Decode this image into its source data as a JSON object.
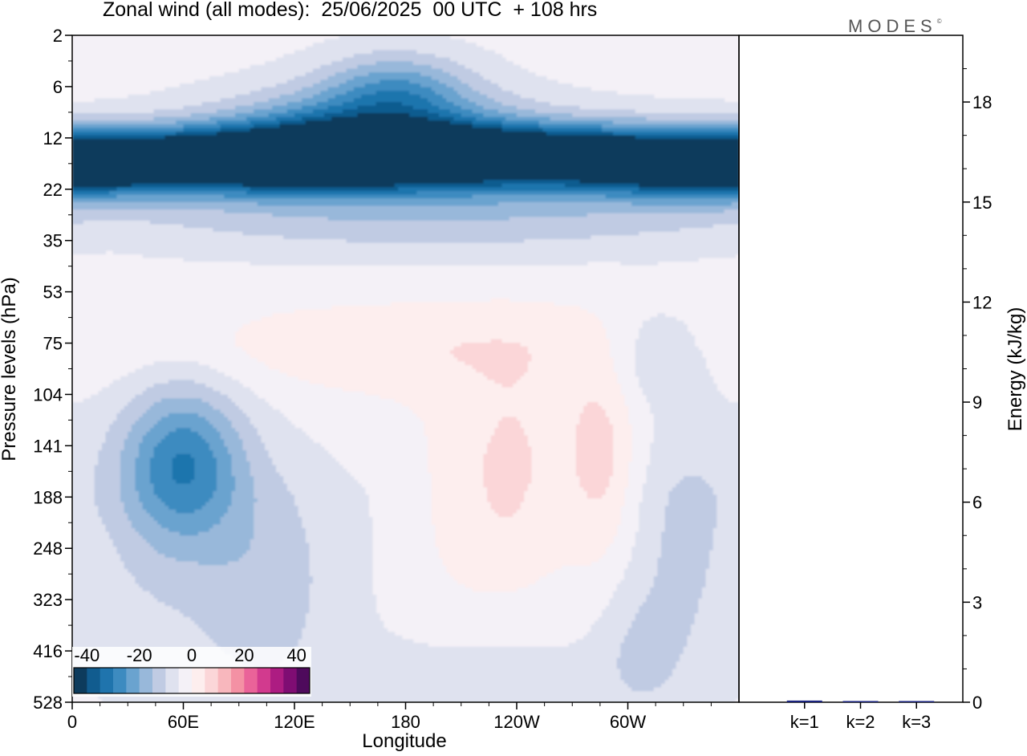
{
  "title": "Zonal wind (all modes):  25/06/2025  00 UTC  + 108 hrs",
  "brand": "MODES",
  "brand_mark": "©",
  "colors": {
    "level_fills": [
      "#0d3b5c",
      "#115c8f",
      "#1f74ad",
      "#3d8bc0",
      "#6aa3cf",
      "#98b8da",
      "#c0cbe3",
      "#dfe2ef",
      "#f4f1f7",
      "#fdeeee",
      "#fbd6d8",
      "#f8b7bd",
      "#f491a4",
      "#ea6399",
      "#d23a8e",
      "#ad1c82",
      "#7f0d73",
      "#4e0a5c"
    ],
    "bar": "#1a237e"
  },
  "chart_data": [
    {
      "type": "heatmap",
      "title": "Zonal wind (all modes):  25/06/2025  00 UTC  + 108 hrs",
      "xlabel": "Longitude",
      "ylabel": "Pressure levels (hPa)",
      "x_ticks": [
        "0",
        "60E",
        "120E",
        "180",
        "120W",
        "60W"
      ],
      "x_tick_degrees": [
        0,
        60,
        120,
        180,
        240,
        300
      ],
      "xlim": [
        0,
        360
      ],
      "y_ticks": [
        "2",
        "6",
        "12",
        "22",
        "35",
        "53",
        "75",
        "104",
        "141",
        "188",
        "248",
        "323",
        "416",
        "528"
      ],
      "colorbar": {
        "ticks": [
          "-40",
          "-20",
          "0",
          "20",
          "40"
        ],
        "tick_values": [
          -40,
          -20,
          0,
          20,
          40
        ],
        "min": -45,
        "max": 45,
        "step": 5
      },
      "features": [
        {
          "lon": 160,
          "level": 1.8,
          "value": -22,
          "w": 75,
          "h": 0.8
        },
        {
          "lon": 175,
          "level": 1.0,
          "value": -16,
          "w": 40,
          "h": 0.7
        },
        {
          "lon": 40,
          "level": 2.4,
          "value": -28,
          "w": 85,
          "h": 0.55
        },
        {
          "lon": 120,
          "level": 2.5,
          "value": -27,
          "w": 80,
          "h": 0.6
        },
        {
          "lon": 190,
          "level": 2.2,
          "value": -32,
          "w": 110,
          "h": 0.65
        },
        {
          "lon": 280,
          "level": 2.4,
          "value": -28,
          "w": 95,
          "h": 0.6
        },
        {
          "lon": 350,
          "level": 2.6,
          "value": -24,
          "w": 60,
          "h": 0.6
        },
        {
          "lon": 200,
          "level": 3.4,
          "value": -12,
          "w": 200,
          "h": 1.0
        },
        {
          "lon": 200,
          "level": 1.7,
          "value": 6,
          "w": 80,
          "h": 0.4
        },
        {
          "lon": 60,
          "level": 8.3,
          "value": -22,
          "w": 32,
          "h": 1.5
        },
        {
          "lon": 45,
          "level": 9.5,
          "value": -7,
          "w": 95,
          "h": 3.2
        },
        {
          "lon": 105,
          "level": 11.0,
          "value": -6,
          "w": 35,
          "h": 2.2
        },
        {
          "lon": 240,
          "level": 8.6,
          "value": 7,
          "w": 25,
          "h": 2.0
        },
        {
          "lon": 210,
          "level": 9.3,
          "value": 5,
          "w": 30,
          "h": 2.2
        },
        {
          "lon": 285,
          "level": 8.2,
          "value": 9,
          "w": 18,
          "h": 1.8
        },
        {
          "lon": 280,
          "level": 10.0,
          "value": 3,
          "w": 35,
          "h": 2.5
        },
        {
          "lon": 315,
          "level": 6.2,
          "value": -8,
          "w": 30,
          "h": 1.0
        },
        {
          "lon": 330,
          "level": 9.8,
          "value": -5,
          "w": 25,
          "h": 2.5
        },
        {
          "lon": 180,
          "level": 6.2,
          "value": 4,
          "w": 120,
          "h": 0.8
        },
        {
          "lon": 230,
          "level": 12.5,
          "value": -4,
          "w": 70,
          "h": 1.0
        },
        {
          "lon": 305,
          "level": 12.0,
          "value": -6,
          "w": 25,
          "h": 1.5
        },
        {
          "lon": 5,
          "level": 10.5,
          "value": 3,
          "w": 25,
          "h": 2.0
        }
      ]
    },
    {
      "type": "bar",
      "categories": [
        "k=1",
        "k=2",
        "k=3"
      ],
      "values": [
        0.05,
        0.02,
        0.01
      ],
      "ylabel": "Energy (kJ/kg)",
      "y_ticks": [
        0,
        3,
        6,
        9,
        12,
        15,
        18
      ],
      "ylim": [
        0,
        20
      ]
    }
  ]
}
